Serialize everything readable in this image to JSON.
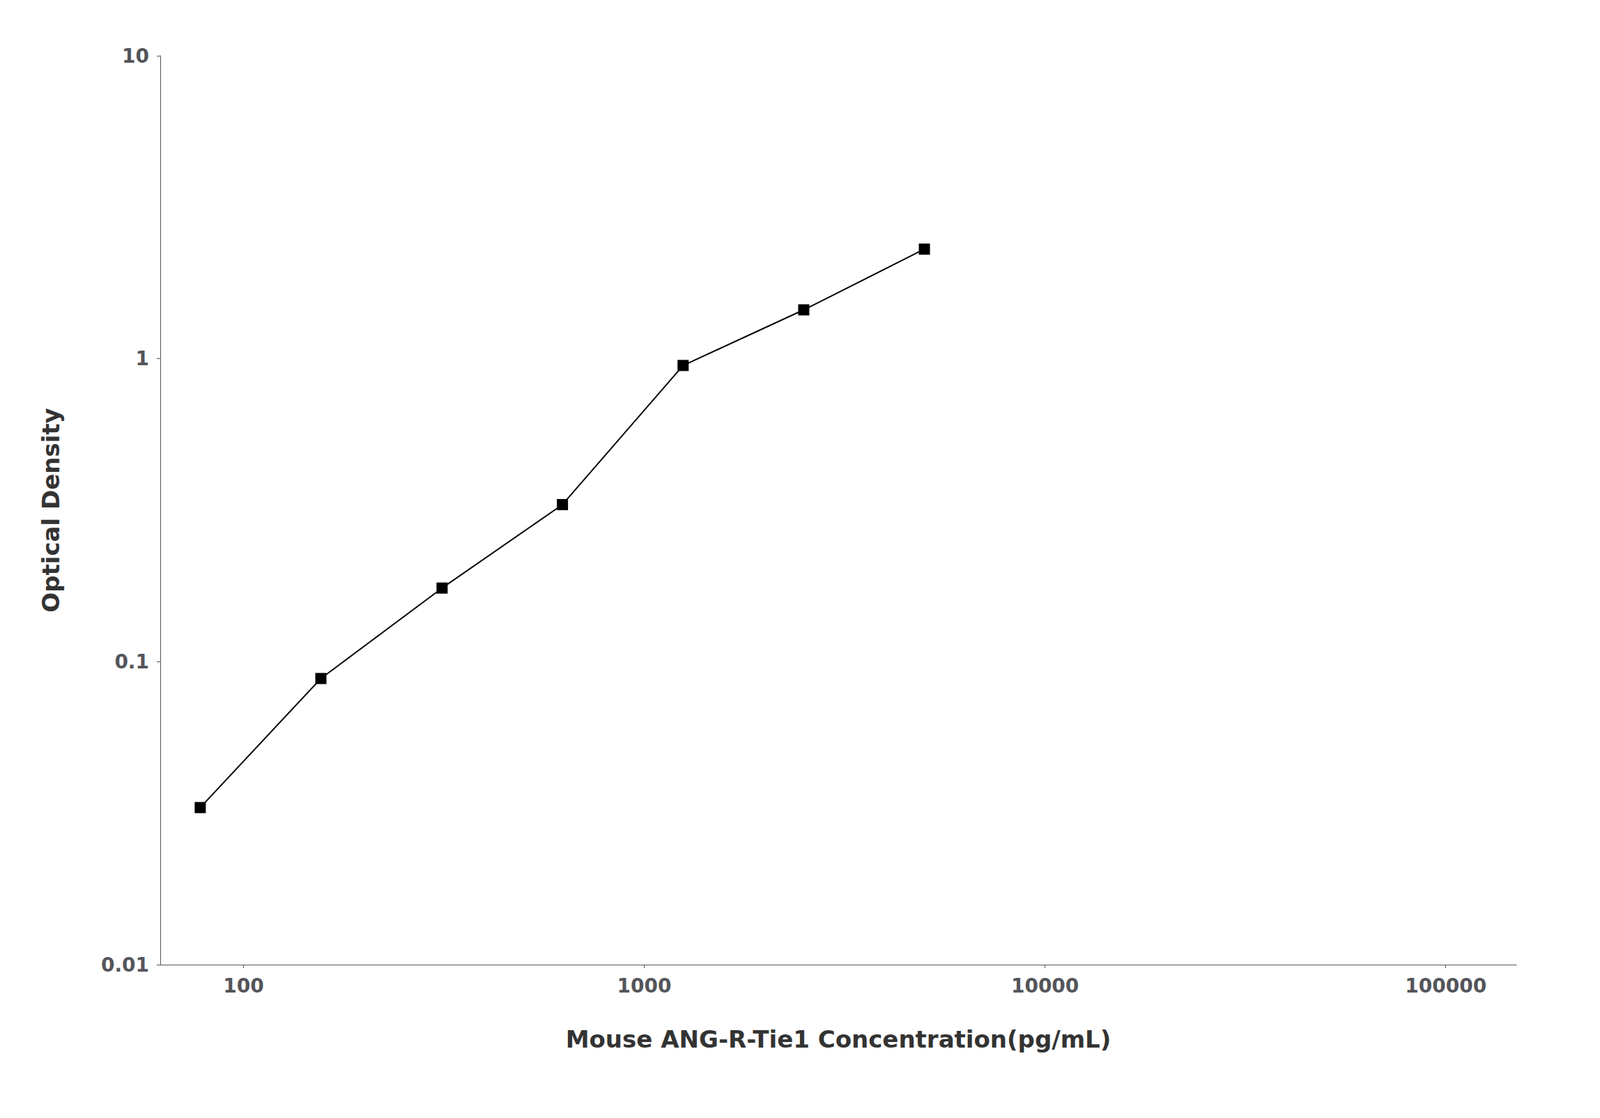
{
  "chart_data": {
    "type": "line",
    "x": [
      78,
      156,
      313,
      625,
      1250,
      2500,
      5000
    ],
    "values": [
      0.033,
      0.088,
      0.175,
      0.33,
      0.95,
      1.45,
      2.3
    ],
    "xlabel": "Mouse ANG-R-Tie1 Concentration(pg/mL)",
    "ylabel": "Optical Density",
    "xlim": [
      62,
      150000
    ],
    "ylim": [
      0.01,
      10
    ],
    "xticks": [
      100,
      1000,
      10000,
      100000
    ],
    "yticks": [
      0.01,
      0.1,
      1,
      10
    ],
    "log": true,
    "grid": false,
    "color": "#000000",
    "marker": "square"
  }
}
